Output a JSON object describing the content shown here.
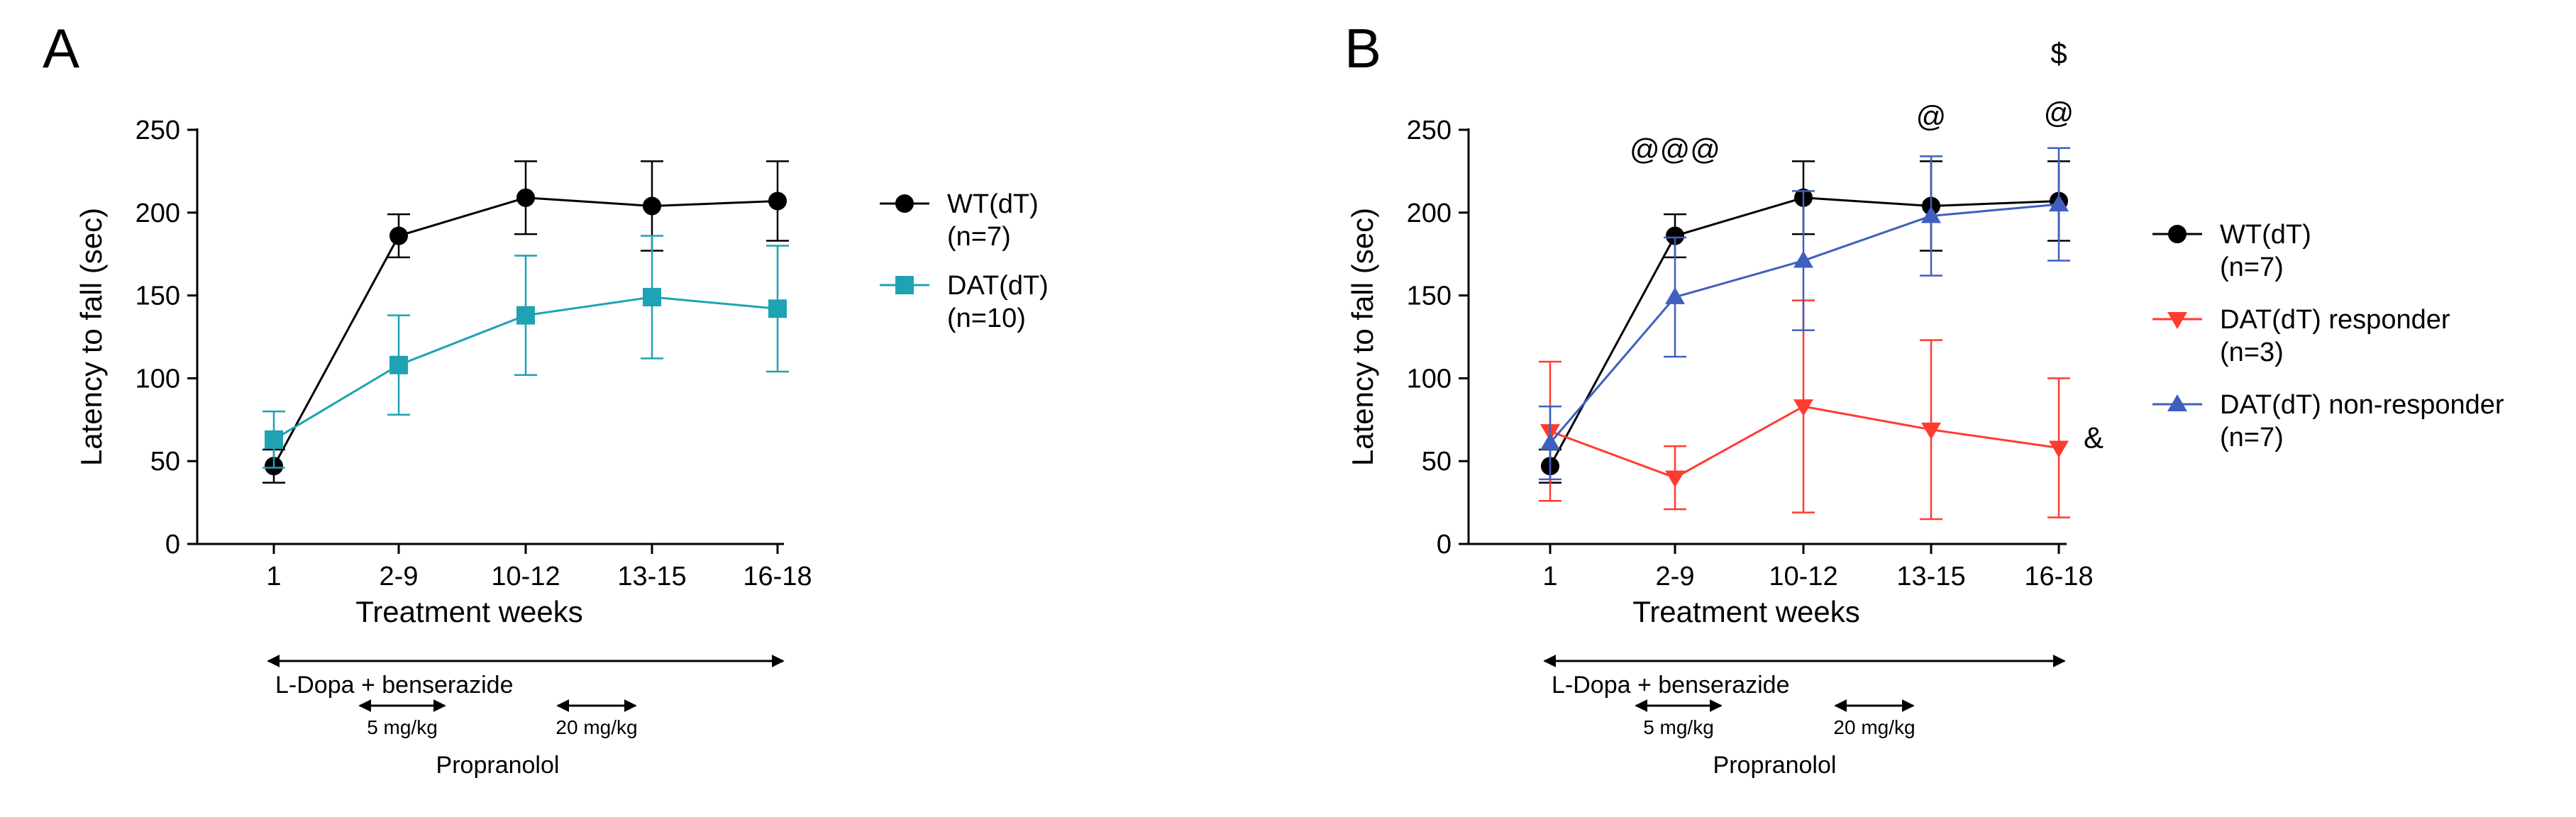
{
  "chart_data": [
    {
      "panel_label": "A",
      "type": "line",
      "xlabel": "Treatment weeks",
      "ylabel": "Latency to fall (sec)",
      "categories": [
        "1",
        "2-9",
        "10-12",
        "13-15",
        "16-18"
      ],
      "ylim": [
        0,
        250
      ],
      "yticks": [
        0,
        50,
        100,
        150,
        200,
        250
      ],
      "legend_position": "right",
      "series": [
        {
          "name": "WT(dT)\n(n=7)",
          "color": "#000000",
          "marker": "circle",
          "values": [
            47,
            186,
            209,
            204,
            207
          ],
          "error": [
            10,
            13,
            22,
            27,
            24
          ]
        },
        {
          "name": "DAT(dT)\n(n=10)",
          "color": "#1fa2b4",
          "marker": "square",
          "values": [
            63,
            108,
            138,
            149,
            142
          ],
          "error": [
            17,
            30,
            36,
            37,
            38
          ]
        }
      ],
      "annotations": [],
      "treatment_bar": "L-Dopa + benserazide",
      "dose_labels": [
        "5 mg/kg",
        "20 mg/kg"
      ],
      "dose_drug": "Propranolol"
    },
    {
      "panel_label": "B",
      "type": "line",
      "xlabel": "Treatment weeks",
      "ylabel": "Latency to fall (sec)",
      "categories": [
        "1",
        "2-9",
        "10-12",
        "13-15",
        "16-18"
      ],
      "ylim": [
        0,
        250
      ],
      "yticks": [
        0,
        50,
        100,
        150,
        200,
        250
      ],
      "legend_position": "right",
      "series": [
        {
          "name": "WT(dT)\n(n=7)",
          "color": "#000000",
          "marker": "circle",
          "values": [
            47,
            186,
            209,
            204,
            207
          ],
          "error": [
            10,
            13,
            22,
            27,
            24
          ]
        },
        {
          "name": "DAT(dT) responder\n(n=3)",
          "color": "#ff3b30",
          "marker": "triangle-down",
          "values": [
            68,
            40,
            83,
            69,
            58
          ],
          "error": [
            42,
            19,
            64,
            54,
            42
          ]
        },
        {
          "name": "DAT(dT) non-responder\n(n=7)",
          "color": "#3f5fbf",
          "marker": "triangle-up",
          "values": [
            61,
            149,
            171,
            198,
            205
          ],
          "error": [
            22,
            36,
            42,
            36,
            34
          ]
        }
      ],
      "annotations": [
        {
          "text": "@@@",
          "category": "2-9",
          "level": 232
        },
        {
          "text": "@",
          "category": "13-15",
          "level": 252
        },
        {
          "text": "@",
          "category": "16-18",
          "level": 254
        },
        {
          "text": "$",
          "category": "16-18",
          "level": 290
        },
        {
          "text": "&",
          "category": "16-18",
          "level": 58
        }
      ],
      "treatment_bar": "L-Dopa + benserazide",
      "dose_labels": [
        "5 mg/kg",
        "20 mg/kg"
      ],
      "dose_drug": "Propranolol"
    }
  ]
}
